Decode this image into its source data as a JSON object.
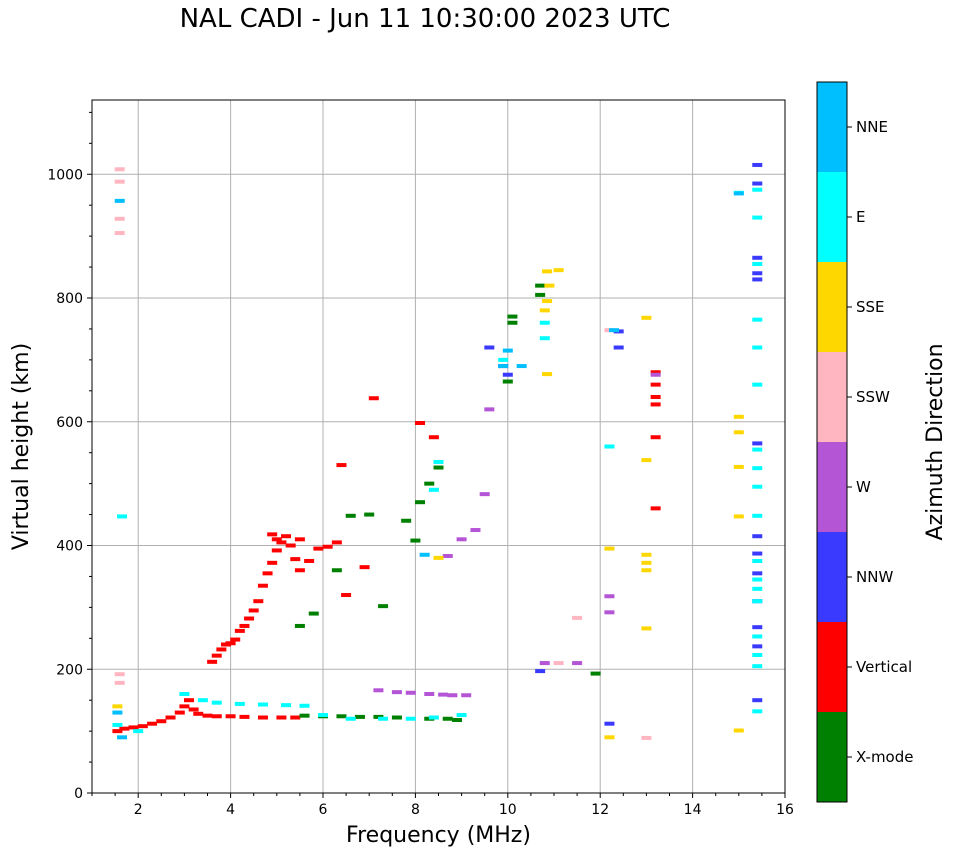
{
  "chart_data": {
    "type": "scatter",
    "title": "NAL CADI - Jun 11 10:30:00 2023 UTC",
    "xlabel": "Frequency (MHz)",
    "ylabel": "Virtual height (km)",
    "xlim": [
      1,
      16
    ],
    "ylim": [
      0,
      1120
    ],
    "xticks": [
      "2",
      "4",
      "6",
      "8",
      "10",
      "12",
      "14",
      "16"
    ],
    "yticks": [
      "0",
      "200",
      "400",
      "600",
      "800",
      "1000"
    ],
    "grid": true,
    "colorbar": {
      "label": "Azimuth Direction",
      "categories": [
        {
          "name": "X-mode",
          "color": "#008000"
        },
        {
          "name": "Vertical",
          "color": "#ff0000"
        },
        {
          "name": "NNW",
          "color": "#3a3aff"
        },
        {
          "name": "W",
          "color": "#b455d6"
        },
        {
          "name": "SSW",
          "color": "#ffb6c1"
        },
        {
          "name": "SSE",
          "color": "#ffd700"
        },
        {
          "name": "E",
          "color": "#00ffff"
        },
        {
          "name": "NNE",
          "color": "#00bfff"
        }
      ]
    },
    "series": [
      {
        "name": "Vertical",
        "points": [
          [
            1.55,
            100
          ],
          [
            1.7,
            104
          ],
          [
            1.9,
            106
          ],
          [
            2.1,
            108
          ],
          [
            2.3,
            112
          ],
          [
            2.5,
            116
          ],
          [
            2.7,
            122
          ],
          [
            2.9,
            130
          ],
          [
            3.0,
            140
          ],
          [
            3.1,
            150
          ],
          [
            3.2,
            135
          ],
          [
            3.3,
            128
          ],
          [
            3.5,
            125
          ],
          [
            3.7,
            124
          ],
          [
            4.0,
            124
          ],
          [
            4.3,
            123
          ],
          [
            4.7,
            122
          ],
          [
            5.1,
            122
          ],
          [
            5.4,
            122
          ],
          [
            3.6,
            212
          ],
          [
            3.7,
            222
          ],
          [
            3.8,
            232
          ],
          [
            3.9,
            240
          ],
          [
            4.0,
            242
          ],
          [
            4.1,
            248
          ],
          [
            4.2,
            262
          ],
          [
            4.3,
            270
          ],
          [
            4.4,
            282
          ],
          [
            4.5,
            295
          ],
          [
            4.6,
            310
          ],
          [
            4.7,
            335
          ],
          [
            4.8,
            355
          ],
          [
            4.9,
            372
          ],
          [
            5.0,
            392
          ],
          [
            5.1,
            405
          ],
          [
            5.2,
            415
          ],
          [
            5.3,
            400
          ],
          [
            5.4,
            378
          ],
          [
            5.5,
            360
          ],
          [
            5.7,
            375
          ],
          [
            5.9,
            395
          ],
          [
            6.1,
            398
          ],
          [
            6.3,
            405
          ],
          [
            4.9,
            418
          ],
          [
            5.0,
            410
          ],
          [
            5.5,
            410
          ],
          [
            6.4,
            530
          ],
          [
            6.5,
            320
          ],
          [
            6.9,
            365
          ],
          [
            7.1,
            638
          ],
          [
            8.1,
            598
          ],
          [
            8.4,
            575
          ],
          [
            13.2,
            680
          ],
          [
            13.2,
            660
          ],
          [
            13.2,
            640
          ],
          [
            13.2,
            628
          ],
          [
            13.2,
            575
          ],
          [
            13.2,
            460
          ]
        ]
      },
      {
        "name": "X-mode",
        "points": [
          [
            5.6,
            125
          ],
          [
            6.0,
            124
          ],
          [
            6.4,
            124
          ],
          [
            6.8,
            123
          ],
          [
            7.2,
            123
          ],
          [
            7.6,
            122
          ],
          [
            8.3,
            120
          ],
          [
            8.7,
            120
          ],
          [
            8.9,
            118
          ],
          [
            5.5,
            270
          ],
          [
            5.8,
            290
          ],
          [
            6.3,
            360
          ],
          [
            6.6,
            448
          ],
          [
            7.0,
            450
          ],
          [
            7.3,
            302
          ],
          [
            7.8,
            440
          ],
          [
            8.0,
            408
          ],
          [
            8.1,
            470
          ],
          [
            8.3,
            500
          ],
          [
            8.5,
            526
          ],
          [
            10.1,
            770
          ],
          [
            10.1,
            760
          ],
          [
            10.7,
            820
          ],
          [
            10.7,
            805
          ],
          [
            10.0,
            665
          ],
          [
            11.9,
            193
          ]
        ]
      },
      {
        "name": "NNW",
        "points": [
          [
            9.6,
            720
          ],
          [
            9.9,
            690
          ],
          [
            10.0,
            676
          ],
          [
            12.4,
            746
          ],
          [
            12.4,
            720
          ],
          [
            15.4,
            1015
          ],
          [
            15.4,
            985
          ],
          [
            15.4,
            865
          ],
          [
            15.4,
            840
          ],
          [
            15.4,
            830
          ],
          [
            15.4,
            565
          ],
          [
            15.4,
            415
          ],
          [
            15.4,
            387
          ],
          [
            15.4,
            355
          ],
          [
            15.4,
            310
          ],
          [
            15.4,
            268
          ],
          [
            15.4,
            237
          ],
          [
            15.4,
            150
          ],
          [
            12.2,
            112
          ],
          [
            10.7,
            197
          ]
        ]
      },
      {
        "name": "W",
        "points": [
          [
            7.2,
            166
          ],
          [
            7.6,
            163
          ],
          [
            7.9,
            162
          ],
          [
            8.3,
            160
          ],
          [
            8.6,
            159
          ],
          [
            8.8,
            158
          ],
          [
            9.1,
            158
          ],
          [
            8.7,
            383
          ],
          [
            9.0,
            410
          ],
          [
            9.3,
            425
          ],
          [
            9.5,
            483
          ],
          [
            9.6,
            620
          ],
          [
            10.8,
            210
          ],
          [
            11.5,
            210
          ],
          [
            12.2,
            318
          ],
          [
            12.2,
            292
          ],
          [
            13.2,
            676
          ]
        ]
      },
      {
        "name": "SSW",
        "points": [
          [
            1.6,
            1008
          ],
          [
            1.6,
            988
          ],
          [
            1.6,
            928
          ],
          [
            1.6,
            905
          ],
          [
            1.6,
            192
          ],
          [
            1.6,
            178
          ],
          [
            11.5,
            283
          ],
          [
            11.1,
            210
          ],
          [
            13.0,
            89
          ],
          [
            12.2,
            748
          ]
        ]
      },
      {
        "name": "SSE",
        "points": [
          [
            1.55,
            140
          ],
          [
            10.85,
            843
          ],
          [
            11.1,
            845
          ],
          [
            10.9,
            820
          ],
          [
            10.85,
            795
          ],
          [
            10.8,
            780
          ],
          [
            10.85,
            677
          ],
          [
            12.2,
            395
          ],
          [
            12.2,
            90
          ],
          [
            13.0,
            768
          ],
          [
            13.0,
            538
          ],
          [
            13.0,
            385
          ],
          [
            13.0,
            372
          ],
          [
            13.0,
            360
          ],
          [
            13.0,
            266
          ],
          [
            15.0,
            608
          ],
          [
            15.0,
            583
          ],
          [
            15.0,
            527
          ],
          [
            15.0,
            447
          ],
          [
            15.0,
            101
          ],
          [
            8.5,
            380
          ]
        ]
      },
      {
        "name": "E",
        "points": [
          [
            1.55,
            110
          ],
          [
            2.0,
            100
          ],
          [
            3.0,
            160
          ],
          [
            3.4,
            150
          ],
          [
            3.7,
            146
          ],
          [
            4.2,
            144
          ],
          [
            4.7,
            143
          ],
          [
            5.2,
            142
          ],
          [
            5.6,
            141
          ],
          [
            6.0,
            126
          ],
          [
            6.6,
            120
          ],
          [
            7.3,
            120
          ],
          [
            7.9,
            120
          ],
          [
            8.4,
            122
          ],
          [
            9.0,
            126
          ],
          [
            10.8,
            760
          ],
          [
            10.8,
            735
          ],
          [
            9.9,
            700
          ],
          [
            12.2,
            560
          ],
          [
            15.4,
            975
          ],
          [
            15.4,
            930
          ],
          [
            15.4,
            855
          ],
          [
            15.4,
            765
          ],
          [
            15.4,
            720
          ],
          [
            15.4,
            660
          ],
          [
            15.4,
            555
          ],
          [
            15.4,
            525
          ],
          [
            15.4,
            495
          ],
          [
            15.4,
            448
          ],
          [
            15.4,
            375
          ],
          [
            15.4,
            345
          ],
          [
            15.4,
            330
          ],
          [
            15.4,
            310
          ],
          [
            15.4,
            253
          ],
          [
            15.4,
            223
          ],
          [
            15.4,
            205
          ],
          [
            15.4,
            132
          ],
          [
            15.0,
            970
          ],
          [
            1.65,
            447
          ],
          [
            8.5,
            535
          ],
          [
            8.4,
            490
          ]
        ]
      },
      {
        "name": "NNE",
        "points": [
          [
            1.6,
            957
          ],
          [
            1.55,
            130
          ],
          [
            1.65,
            90
          ],
          [
            10.0,
            715
          ],
          [
            9.9,
            690
          ],
          [
            10.3,
            690
          ],
          [
            12.3,
            748
          ],
          [
            8.2,
            385
          ],
          [
            15.0,
            969
          ]
        ]
      }
    ]
  }
}
